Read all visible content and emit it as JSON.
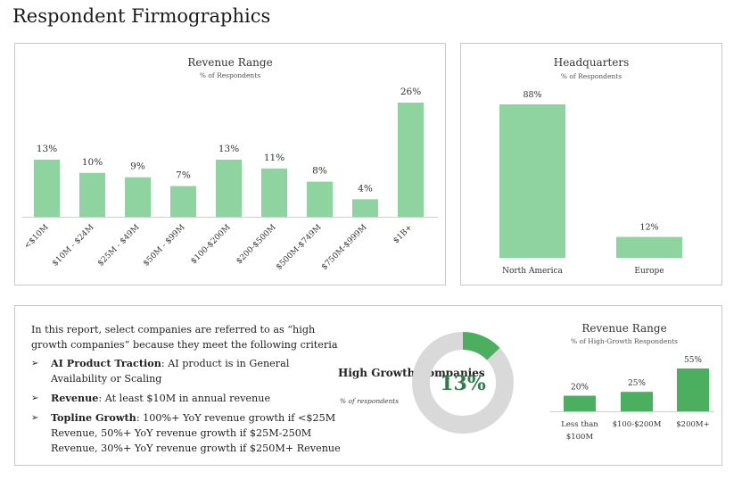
{
  "page_title": "Respondent Firmographics",
  "chart_data": [
    {
      "type": "bar",
      "title": "Revenue Range",
      "subtitle": "% of Respondents",
      "categories": [
        "<$10M",
        "$10M - $24M",
        "$25M - $49M",
        "$50M - $99M",
        "$100-$200M",
        "$200-$500M",
        "$500M-$749M",
        "$750M-$999M",
        "$1B+"
      ],
      "values": [
        13,
        10,
        9,
        7,
        13,
        11,
        8,
        4,
        26
      ],
      "labels": [
        "13%",
        "10%",
        "9%",
        "7%",
        "13%",
        "11%",
        "8%",
        "4%",
        "26%"
      ],
      "color": "#8fd4a0",
      "ylim": [
        0,
        26
      ]
    },
    {
      "type": "bar",
      "title": "Headquarters",
      "subtitle": "% of Respondents",
      "categories": [
        "North America",
        "Europe"
      ],
      "values": [
        88,
        12
      ],
      "labels": [
        "88%",
        "12%"
      ],
      "color": "#8fd4a0",
      "ylim": [
        0,
        88
      ]
    },
    {
      "type": "pie",
      "title": "High Growth Companies",
      "subtitle": "% of respondents",
      "values": [
        13,
        87
      ],
      "center_label": "13%",
      "colors": [
        "#4caf60",
        "#d9d9d9"
      ]
    },
    {
      "type": "bar",
      "title": "Revenue Range",
      "subtitle": "% of High-Growth Respondents",
      "categories": [
        "Less than $100M",
        "$100-$200M",
        "$200M+"
      ],
      "values": [
        20,
        25,
        55
      ],
      "labels": [
        "20%",
        "25%",
        "55%"
      ],
      "color": "#4caf60",
      "ylim": [
        0,
        55
      ]
    }
  ],
  "criteria": {
    "intro": "In this report, select companies are referred to as “high growth companies” because they meet the following criteria",
    "items": [
      {
        "term": "AI Product Traction",
        "text": ": AI product is in General Availability or Scaling"
      },
      {
        "term": "Revenue",
        "text": ": At least $10M in annual revenue"
      },
      {
        "term": "Topline Growth",
        "text": ": 100%+ YoY revenue growth if <$25M Revenue, 50%+ YoY revenue growth if $25M-250M Revenue, 30%+ YoY revenue growth if $250M+ Revenue"
      }
    ],
    "bullet": "➢"
  }
}
